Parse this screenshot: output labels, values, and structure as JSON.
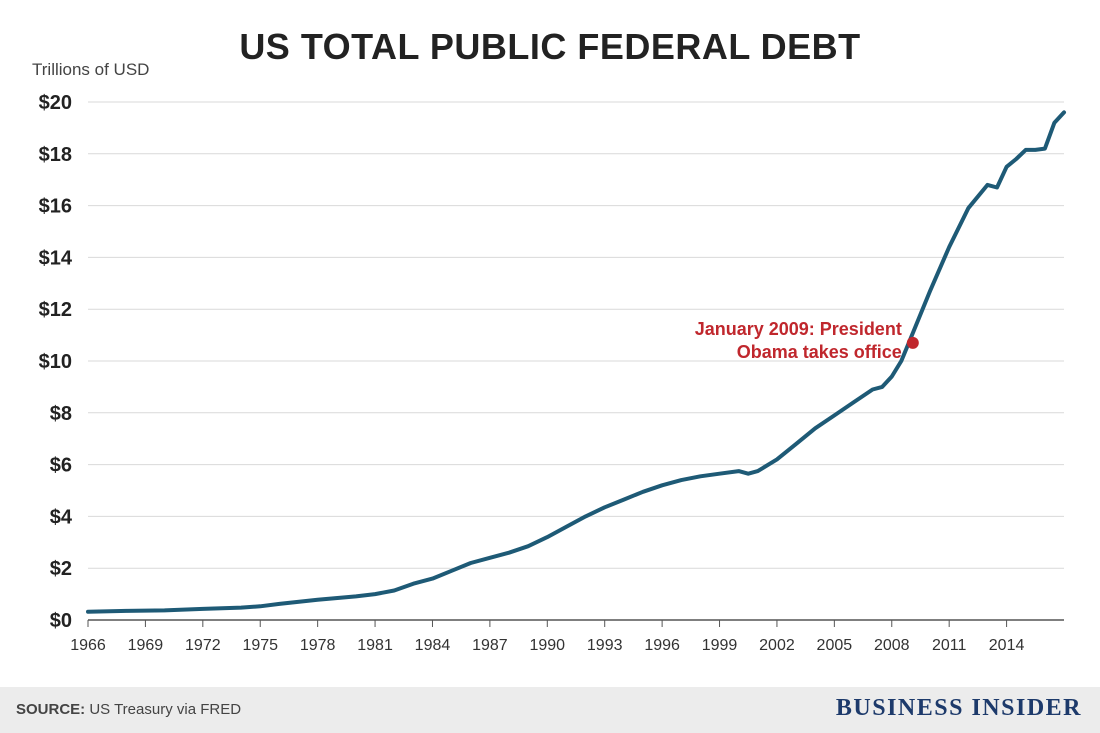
{
  "header": {
    "title": "US TOTAL PUBLIC FEDERAL DEBT"
  },
  "footer": {
    "source_label": "SOURCE:",
    "source_text": "US Treasury via FRED",
    "brand": "BUSINESS INSIDER"
  },
  "colors": {
    "line": "#1e5a76",
    "annotation": "#c0272d",
    "grid": "#d9d9d9",
    "footer_bg": "#ececec"
  },
  "chart_data": {
    "type": "line",
    "title": "US TOTAL PUBLIC FEDERAL DEBT",
    "ylabel": "Trillions of USD",
    "xlabel": "",
    "xlim": [
      1966,
      2017
    ],
    "ylim": [
      0,
      20
    ],
    "grid": true,
    "x_ticks": [
      1966,
      1969,
      1972,
      1975,
      1978,
      1981,
      1984,
      1987,
      1990,
      1993,
      1996,
      1999,
      2002,
      2005,
      2008,
      2011,
      2014
    ],
    "x_tick_labels": [
      "1966",
      "1969",
      "1972",
      "1975",
      "1978",
      "1981",
      "1984",
      "1987",
      "1990",
      "1993",
      "1996",
      "1999",
      "2002",
      "2005",
      "2008",
      "2011",
      "2014"
    ],
    "y_ticks": [
      0,
      2,
      4,
      6,
      8,
      10,
      12,
      14,
      16,
      18,
      20
    ],
    "y_tick_labels": [
      "$0",
      "$2",
      "$4",
      "$6",
      "$8",
      "$10",
      "$12",
      "$14",
      "$16",
      "$18",
      "$20"
    ],
    "series": [
      {
        "x": [
          1966,
          1968,
          1970,
          1972,
          1974,
          1975,
          1976,
          1978,
          1980,
          1981,
          1982,
          1983,
          1984,
          1985,
          1986,
          1987,
          1988,
          1989,
          1990,
          1991,
          1992,
          1993,
          1994,
          1995,
          1996,
          1997,
          1998,
          1999,
          2000,
          2000.5,
          2001,
          2002,
          2003,
          2004,
          2005,
          2006,
          2007,
          2007.5,
          2008,
          2008.5,
          2009,
          2010,
          2011,
          2012,
          2013,
          2013.5,
          2014,
          2014.5,
          2015,
          2015.5,
          2016,
          2016.5,
          2017
        ],
        "y": [
          0.32,
          0.35,
          0.37,
          0.43,
          0.48,
          0.53,
          0.62,
          0.78,
          0.91,
          1.0,
          1.14,
          1.4,
          1.6,
          1.9,
          2.2,
          2.4,
          2.6,
          2.85,
          3.2,
          3.6,
          4.0,
          4.35,
          4.65,
          4.95,
          5.2,
          5.4,
          5.55,
          5.65,
          5.75,
          5.65,
          5.75,
          6.2,
          6.8,
          7.4,
          7.9,
          8.4,
          8.9,
          9.0,
          9.4,
          10.0,
          10.9,
          12.7,
          14.4,
          15.9,
          16.8,
          16.7,
          17.5,
          17.8,
          18.15,
          18.15,
          18.2,
          19.2,
          19.6
        ]
      }
    ],
    "annotations": [
      {
        "x": 2009.1,
        "y": 10.7,
        "text_line1": "January 2009: President",
        "text_line2": "Obama takes office"
      }
    ]
  }
}
